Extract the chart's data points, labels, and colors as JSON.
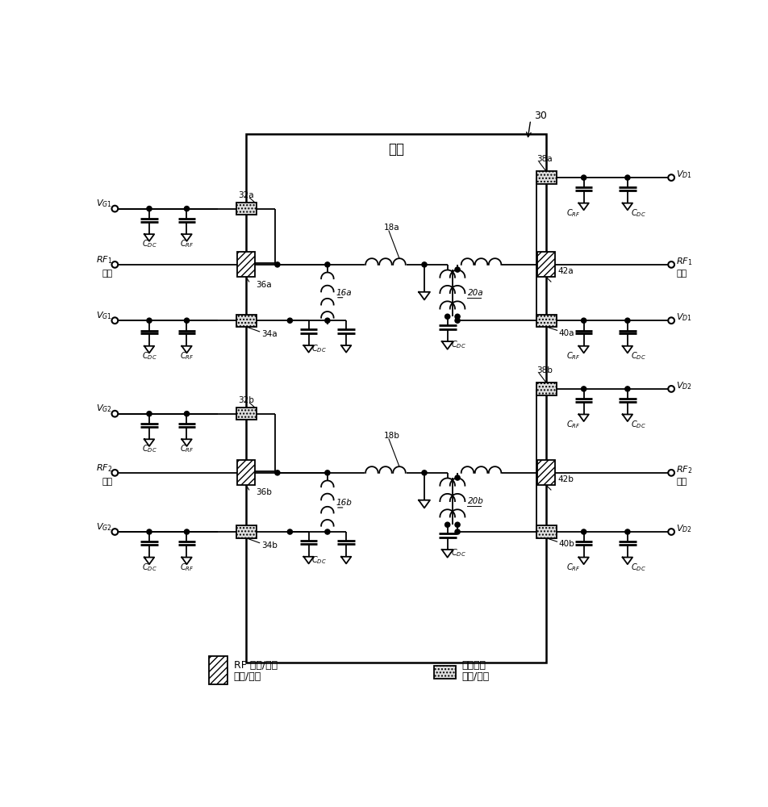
{
  "bg_color": "#ffffff",
  "package_label": "封装",
  "package_number": "30",
  "legend_rf": "RF 输入/输出\n引脚/连接",
  "legend_bias": "偏置馈送\n引脚/连接",
  "rf1_in": "RF₁",
  "rf2_in": "RF₂",
  "rf1_out": "RF₁",
  "rf2_out": "RF₂",
  "input_label": "输入",
  "output_label": "输出"
}
